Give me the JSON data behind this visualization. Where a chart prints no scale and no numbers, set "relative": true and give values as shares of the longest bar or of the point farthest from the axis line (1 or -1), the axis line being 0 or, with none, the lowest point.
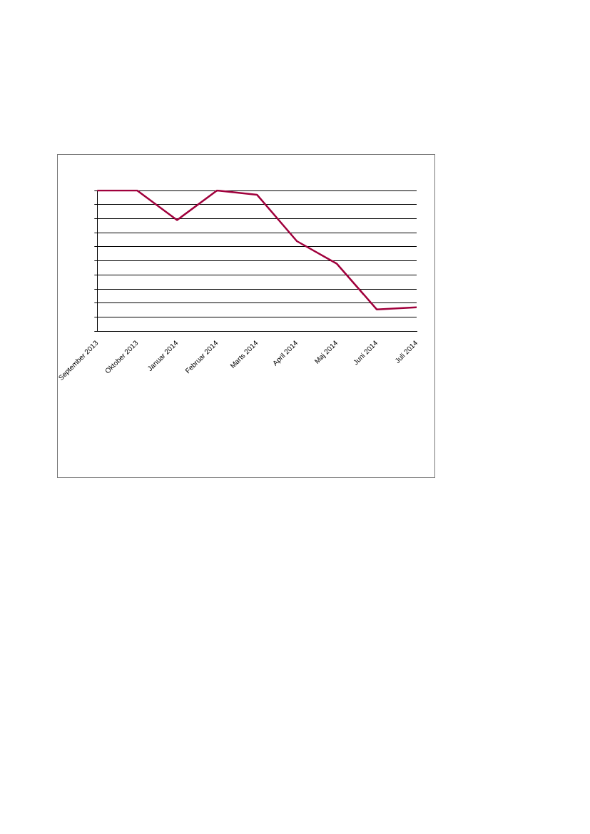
{
  "chart_data": {
    "type": "line",
    "relative": true,
    "categories": [
      "September 2013",
      "Oktober 2013",
      "Januar 2014",
      "Februar 2014",
      "Marts 2014",
      "April 2014",
      "Maj 2014",
      "Juni 2014",
      "Juli 2014"
    ],
    "series": [
      {
        "color": "#a0003c",
        "values": [
          1,
          1,
          0.79,
          1,
          0.97,
          0.64,
          0.48,
          0.155,
          0.17
        ]
      }
    ],
    "grid": "y",
    "legend": false,
    "marker": "none",
    "line_style": "solid"
  }
}
